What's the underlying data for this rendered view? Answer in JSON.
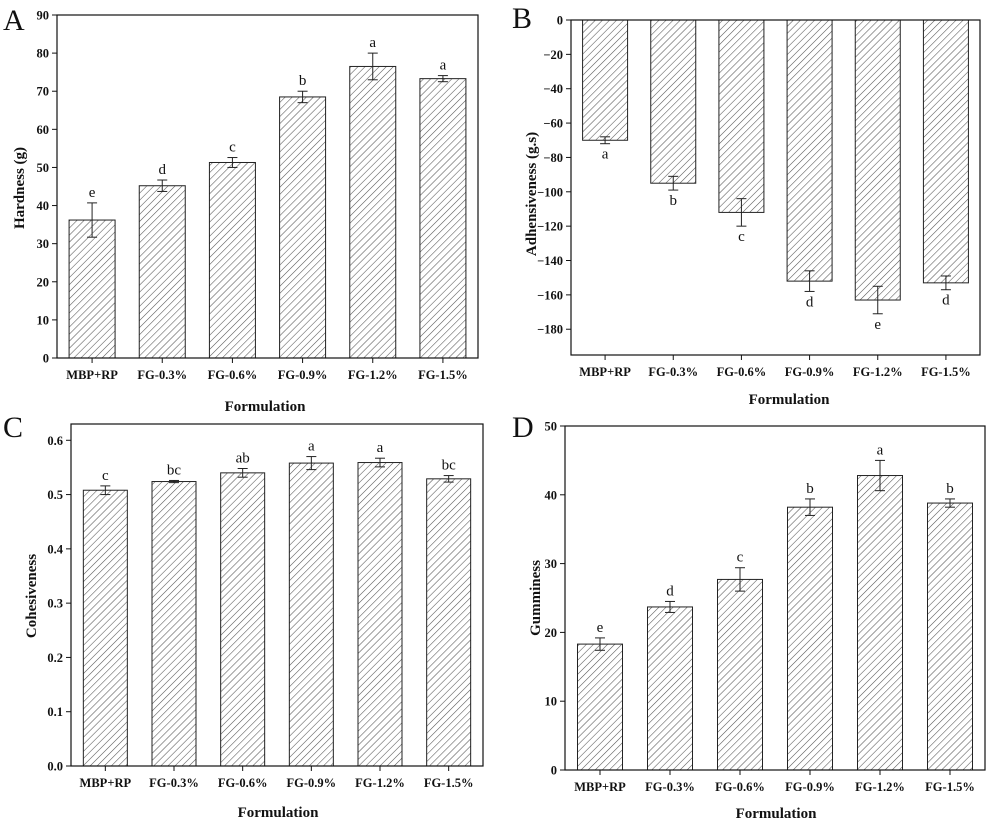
{
  "chart_data": [
    {
      "panel": "A",
      "type": "bar",
      "categories": [
        "MBP+RP",
        "FG-0.3%",
        "FG-0.6%",
        "FG-0.9%",
        "FG-1.2%",
        "FG-1.5%"
      ],
      "values": [
        36.2,
        45.2,
        51.3,
        68.5,
        76.5,
        73.3
      ],
      "errors": [
        4.5,
        1.5,
        1.3,
        1.5,
        3.5,
        0.8
      ],
      "letters": [
        "e",
        "d",
        "c",
        "b",
        "a",
        "a"
      ],
      "xlabel": "Formulation",
      "ylabel": "Hardness (g)",
      "ylim": [
        0,
        90
      ],
      "yticks": [
        0,
        10,
        20,
        30,
        40,
        50,
        60,
        70,
        80,
        90
      ],
      "ytick_labels": [
        "0",
        "10",
        "20",
        "30",
        "40",
        "50",
        "60",
        "70",
        "80",
        "90"
      ]
    },
    {
      "panel": "B",
      "type": "bar",
      "categories": [
        "MBP+RP",
        "FG-0.3%",
        "FG-0.6%",
        "FG-0.9%",
        "FG-1.2%",
        "FG-1.5%"
      ],
      "values": [
        -70,
        -95,
        -112,
        -152,
        -163,
        -153
      ],
      "errors": [
        2,
        4,
        8,
        6,
        8,
        4
      ],
      "letters": [
        "a",
        "b",
        "c",
        "d",
        "e",
        "d"
      ],
      "xlabel": "Formulation",
      "ylabel": "Adhensiveness (g.s)",
      "ylim": [
        -195,
        0
      ],
      "yticks": [
        0,
        -20,
        -40,
        -60,
        -80,
        -100,
        -120,
        -140,
        -160,
        -180
      ],
      "ytick_labels": [
        "0",
        "−20",
        "−40",
        "−60",
        "−80",
        "−100",
        "−120",
        "−140",
        "−160",
        "−180"
      ]
    },
    {
      "panel": "C",
      "type": "bar",
      "categories": [
        "MBP+RP",
        "FG-0.3%",
        "FG-0.6%",
        "FG-0.9%",
        "FG-1.2%",
        "FG-1.5%"
      ],
      "values": [
        0.508,
        0.524,
        0.54,
        0.558,
        0.559,
        0.529
      ],
      "errors": [
        0.008,
        0.002,
        0.008,
        0.012,
        0.008,
        0.006
      ],
      "letters": [
        "c",
        "bc",
        "ab",
        "a",
        "a",
        "bc"
      ],
      "xlabel": "Formulation",
      "ylabel": "Cohesiveness",
      "ylim": [
        0,
        0.63
      ],
      "yticks": [
        0,
        0.1,
        0.2,
        0.3,
        0.4,
        0.5,
        0.6
      ],
      "ytick_labels": [
        "0.0",
        "0.1",
        "0.2",
        "0.3",
        "0.4",
        "0.5",
        "0.6"
      ]
    },
    {
      "panel": "D",
      "type": "bar",
      "categories": [
        "MBP+RP",
        "FG-0.3%",
        "FG-0.6%",
        "FG-0.9%",
        "FG-1.2%",
        "FG-1.5%"
      ],
      "values": [
        18.3,
        23.7,
        27.7,
        38.2,
        42.8,
        38.8
      ],
      "errors": [
        0.9,
        0.8,
        1.7,
        1.2,
        2.2,
        0.6
      ],
      "letters": [
        "e",
        "d",
        "c",
        "b",
        "a",
        "b"
      ],
      "xlabel": "Formulation",
      "ylabel": "Gumminess",
      "ylim": [
        0,
        50
      ],
      "yticks": [
        0,
        10,
        20,
        30,
        40,
        50
      ],
      "ytick_labels": [
        "0",
        "10",
        "20",
        "30",
        "40",
        "50"
      ]
    }
  ]
}
